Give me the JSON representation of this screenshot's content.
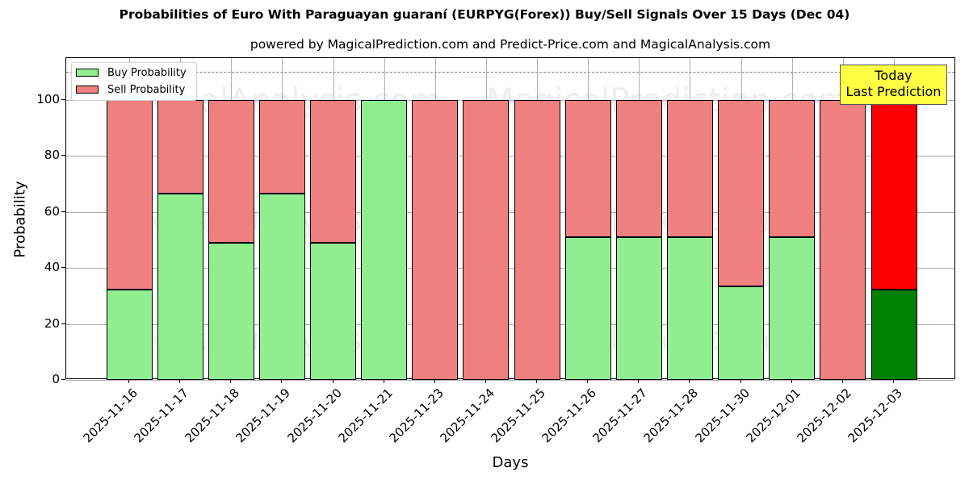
{
  "chart_data": {
    "type": "bar",
    "stacked": true,
    "title": "Probabilities of Euro With Paraguayan guaraní (EURPYG(Forex)) Buy/Sell Signals Over 15 Days (Dec 04)",
    "subtitle": "powered by MagicalPrediction.com and Predict-Price.com and MagicalAnalysis.com",
    "xlabel": "Days",
    "ylabel": "Probability",
    "ylim": [
      0,
      115
    ],
    "yticks": [
      0,
      20,
      40,
      60,
      80,
      100
    ],
    "grid": true,
    "legend_position": "upper left",
    "reference_line": {
      "y": 110,
      "style": "dashed",
      "color": "#808080"
    },
    "categories": [
      "2025-11-16",
      "2025-11-17",
      "2025-11-18",
      "2025-11-19",
      "2025-11-20",
      "2025-11-21",
      "2025-11-23",
      "2025-11-24",
      "2025-11-25",
      "2025-11-26",
      "2025-11-27",
      "2025-11-28",
      "2025-11-30",
      "2025-12-01",
      "2025-12-02",
      "2025-12-03"
    ],
    "series": [
      {
        "name": "Buy Probability",
        "color": "#90ee90",
        "values": [
          32.4,
          66.5,
          49.0,
          66.5,
          49.0,
          100,
          0,
          0,
          0,
          51.0,
          51.0,
          51.0,
          33.5,
          51.0,
          0,
          32.4
        ]
      },
      {
        "name": "Sell Probability",
        "color": "#f08080",
        "values": [
          67.6,
          33.5,
          51.0,
          33.5,
          51.0,
          0,
          100,
          100,
          100,
          49.0,
          49.0,
          49.0,
          66.5,
          49.0,
          100,
          67.6
        ]
      }
    ],
    "highlight": {
      "index": 15,
      "buy_color": "#008000",
      "sell_color": "#ff0000"
    },
    "annotations": [
      {
        "text": "Today\nLast Prediction",
        "category": "2025-12-03",
        "background": "#ffff44"
      }
    ],
    "watermarks": [
      "MagicalAnalysis.com",
      "MagicalPrediction.com"
    ]
  },
  "legend": {
    "buy_label": "Buy Probability",
    "sell_label": "Sell Probability"
  },
  "annotation": {
    "line1": "Today",
    "line2": "Last Prediction"
  }
}
